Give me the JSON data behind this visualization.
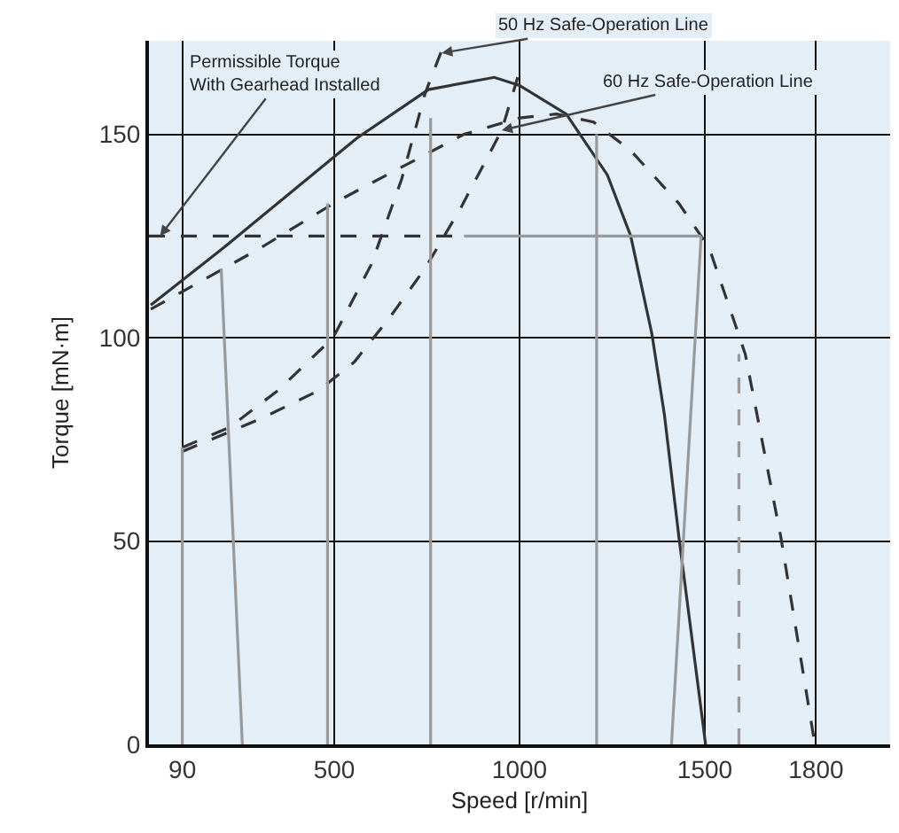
{
  "chart_data": {
    "type": "line",
    "xlabel": "Speed [r/min]",
    "ylabel": "Torque [mN·m]",
    "xlim": [
      0,
      2000
    ],
    "ylim": [
      0,
      173
    ],
    "xticks": [
      90,
      500,
      1000,
      1500,
      1800
    ],
    "yticks": [
      0,
      50,
      100,
      150
    ],
    "grid": true,
    "marker": "none",
    "series": [
      {
        "color": "#333333",
        "line_style": "solid",
        "x": [
          5,
          200,
          400,
          560,
          754,
          932,
          1000,
          1126,
          1237,
          1300,
          1357,
          1391,
          1430,
          1502
        ],
        "values": [
          108,
          122,
          137,
          149,
          161,
          164,
          162,
          155,
          140,
          125,
          101,
          81,
          51,
          0
        ]
      },
      {
        "color": "#333333",
        "line_style": "dashed",
        "x": [
          5,
          300,
          498,
          600,
          850,
          1000,
          1100,
          1200,
          1300,
          1430,
          1512,
          1609,
          1705,
          1797
        ],
        "values": [
          107,
          122,
          133,
          138,
          150,
          154,
          155,
          153,
          146,
          133,
          122,
          96,
          51,
          0
        ]
      },
      {
        "color": "#333333",
        "line_style": "dashed",
        "x": [
          90,
          218,
          348,
          497,
          600,
          682,
          745,
          800
        ],
        "values": [
          73,
          78,
          87,
          100,
          118,
          139,
          160,
          173
        ]
      },
      {
        "color": "#333333",
        "line_style": "dashed",
        "x": [
          90,
          300,
          458,
          554,
          650,
          745,
          842,
          952,
          995
        ],
        "values": [
          72,
          80,
          87,
          94,
          105,
          117,
          132,
          151,
          164
        ]
      },
      {
        "color": "#333333",
        "line_style": "dashed",
        "x": [
          0,
          850
        ],
        "values": [
          125,
          125
        ]
      },
      {
        "color": "#999999",
        "line_style": "solid",
        "x": [
          850,
          1490
        ],
        "values": [
          125,
          125
        ]
      },
      {
        "color": "#999999",
        "line_style": "solid",
        "x": [
          90,
          90
        ],
        "values": [
          0,
          73
        ]
      },
      {
        "color": "#999999",
        "line_style": "solid",
        "x": [
          195,
          252
        ],
        "values": [
          117,
          0
        ]
      },
      {
        "color": "#999999",
        "line_style": "solid",
        "x": [
          482,
          482
        ],
        "values": [
          0,
          133
        ]
      },
      {
        "color": "#999999",
        "line_style": "solid",
        "x": [
          760,
          760
        ],
        "values": [
          0,
          154
        ]
      },
      {
        "color": "#999999",
        "line_style": "solid",
        "x": [
          1208,
          1208
        ],
        "values": [
          0,
          150
        ]
      },
      {
        "color": "#999999",
        "line_style": "solid",
        "x": [
          1490,
          1410
        ],
        "values": [
          125,
          0
        ]
      },
      {
        "color": "#999999",
        "line_style": "dashed",
        "x": [
          1592,
          1592
        ],
        "values": [
          0,
          96
        ]
      }
    ],
    "annotations": [
      {
        "text": "Permissible Torque\nWith Gearhead Installed",
        "x": 30,
        "y": 125
      },
      {
        "text": "50 Hz Safe-Operation Line",
        "x": 790,
        "y": 170
      },
      {
        "text": "60 Hz Safe-Operation Line",
        "x": 952,
        "y": 151
      }
    ]
  }
}
